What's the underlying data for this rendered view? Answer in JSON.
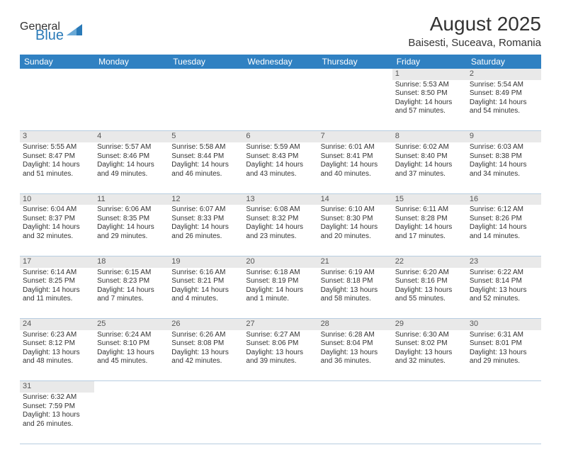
{
  "logo": {
    "word1": "General",
    "word2": "Blue"
  },
  "title": "August 2025",
  "location": "Baisesti, Suceava, Romania",
  "colors": {
    "header_bg": "#3081c2",
    "header_text": "#ffffff",
    "daynum_bg": "#e9e9e9",
    "cell_border": "#b7cde0",
    "text": "#333333",
    "logo_gray": "#58585a",
    "logo_blue": "#2a7ab8"
  },
  "day_headers": [
    "Sunday",
    "Monday",
    "Tuesday",
    "Wednesday",
    "Thursday",
    "Friday",
    "Saturday"
  ],
  "weeks": [
    [
      null,
      null,
      null,
      null,
      null,
      {
        "n": "1",
        "sr": "Sunrise: 5:53 AM",
        "ss": "Sunset: 8:50 PM",
        "d1": "Daylight: 14 hours",
        "d2": "and 57 minutes."
      },
      {
        "n": "2",
        "sr": "Sunrise: 5:54 AM",
        "ss": "Sunset: 8:49 PM",
        "d1": "Daylight: 14 hours",
        "d2": "and 54 minutes."
      }
    ],
    [
      {
        "n": "3",
        "sr": "Sunrise: 5:55 AM",
        "ss": "Sunset: 8:47 PM",
        "d1": "Daylight: 14 hours",
        "d2": "and 51 minutes."
      },
      {
        "n": "4",
        "sr": "Sunrise: 5:57 AM",
        "ss": "Sunset: 8:46 PM",
        "d1": "Daylight: 14 hours",
        "d2": "and 49 minutes."
      },
      {
        "n": "5",
        "sr": "Sunrise: 5:58 AM",
        "ss": "Sunset: 8:44 PM",
        "d1": "Daylight: 14 hours",
        "d2": "and 46 minutes."
      },
      {
        "n": "6",
        "sr": "Sunrise: 5:59 AM",
        "ss": "Sunset: 8:43 PM",
        "d1": "Daylight: 14 hours",
        "d2": "and 43 minutes."
      },
      {
        "n": "7",
        "sr": "Sunrise: 6:01 AM",
        "ss": "Sunset: 8:41 PM",
        "d1": "Daylight: 14 hours",
        "d2": "and 40 minutes."
      },
      {
        "n": "8",
        "sr": "Sunrise: 6:02 AM",
        "ss": "Sunset: 8:40 PM",
        "d1": "Daylight: 14 hours",
        "d2": "and 37 minutes."
      },
      {
        "n": "9",
        "sr": "Sunrise: 6:03 AM",
        "ss": "Sunset: 8:38 PM",
        "d1": "Daylight: 14 hours",
        "d2": "and 34 minutes."
      }
    ],
    [
      {
        "n": "10",
        "sr": "Sunrise: 6:04 AM",
        "ss": "Sunset: 8:37 PM",
        "d1": "Daylight: 14 hours",
        "d2": "and 32 minutes."
      },
      {
        "n": "11",
        "sr": "Sunrise: 6:06 AM",
        "ss": "Sunset: 8:35 PM",
        "d1": "Daylight: 14 hours",
        "d2": "and 29 minutes."
      },
      {
        "n": "12",
        "sr": "Sunrise: 6:07 AM",
        "ss": "Sunset: 8:33 PM",
        "d1": "Daylight: 14 hours",
        "d2": "and 26 minutes."
      },
      {
        "n": "13",
        "sr": "Sunrise: 6:08 AM",
        "ss": "Sunset: 8:32 PM",
        "d1": "Daylight: 14 hours",
        "d2": "and 23 minutes."
      },
      {
        "n": "14",
        "sr": "Sunrise: 6:10 AM",
        "ss": "Sunset: 8:30 PM",
        "d1": "Daylight: 14 hours",
        "d2": "and 20 minutes."
      },
      {
        "n": "15",
        "sr": "Sunrise: 6:11 AM",
        "ss": "Sunset: 8:28 PM",
        "d1": "Daylight: 14 hours",
        "d2": "and 17 minutes."
      },
      {
        "n": "16",
        "sr": "Sunrise: 6:12 AM",
        "ss": "Sunset: 8:26 PM",
        "d1": "Daylight: 14 hours",
        "d2": "and 14 minutes."
      }
    ],
    [
      {
        "n": "17",
        "sr": "Sunrise: 6:14 AM",
        "ss": "Sunset: 8:25 PM",
        "d1": "Daylight: 14 hours",
        "d2": "and 11 minutes."
      },
      {
        "n": "18",
        "sr": "Sunrise: 6:15 AM",
        "ss": "Sunset: 8:23 PM",
        "d1": "Daylight: 14 hours",
        "d2": "and 7 minutes."
      },
      {
        "n": "19",
        "sr": "Sunrise: 6:16 AM",
        "ss": "Sunset: 8:21 PM",
        "d1": "Daylight: 14 hours",
        "d2": "and 4 minutes."
      },
      {
        "n": "20",
        "sr": "Sunrise: 6:18 AM",
        "ss": "Sunset: 8:19 PM",
        "d1": "Daylight: 14 hours",
        "d2": "and 1 minute."
      },
      {
        "n": "21",
        "sr": "Sunrise: 6:19 AM",
        "ss": "Sunset: 8:18 PM",
        "d1": "Daylight: 13 hours",
        "d2": "and 58 minutes."
      },
      {
        "n": "22",
        "sr": "Sunrise: 6:20 AM",
        "ss": "Sunset: 8:16 PM",
        "d1": "Daylight: 13 hours",
        "d2": "and 55 minutes."
      },
      {
        "n": "23",
        "sr": "Sunrise: 6:22 AM",
        "ss": "Sunset: 8:14 PM",
        "d1": "Daylight: 13 hours",
        "d2": "and 52 minutes."
      }
    ],
    [
      {
        "n": "24",
        "sr": "Sunrise: 6:23 AM",
        "ss": "Sunset: 8:12 PM",
        "d1": "Daylight: 13 hours",
        "d2": "and 48 minutes."
      },
      {
        "n": "25",
        "sr": "Sunrise: 6:24 AM",
        "ss": "Sunset: 8:10 PM",
        "d1": "Daylight: 13 hours",
        "d2": "and 45 minutes."
      },
      {
        "n": "26",
        "sr": "Sunrise: 6:26 AM",
        "ss": "Sunset: 8:08 PM",
        "d1": "Daylight: 13 hours",
        "d2": "and 42 minutes."
      },
      {
        "n": "27",
        "sr": "Sunrise: 6:27 AM",
        "ss": "Sunset: 8:06 PM",
        "d1": "Daylight: 13 hours",
        "d2": "and 39 minutes."
      },
      {
        "n": "28",
        "sr": "Sunrise: 6:28 AM",
        "ss": "Sunset: 8:04 PM",
        "d1": "Daylight: 13 hours",
        "d2": "and 36 minutes."
      },
      {
        "n": "29",
        "sr": "Sunrise: 6:30 AM",
        "ss": "Sunset: 8:02 PM",
        "d1": "Daylight: 13 hours",
        "d2": "and 32 minutes."
      },
      {
        "n": "30",
        "sr": "Sunrise: 6:31 AM",
        "ss": "Sunset: 8:01 PM",
        "d1": "Daylight: 13 hours",
        "d2": "and 29 minutes."
      }
    ],
    [
      {
        "n": "31",
        "sr": "Sunrise: 6:32 AM",
        "ss": "Sunset: 7:59 PM",
        "d1": "Daylight: 13 hours",
        "d2": "and 26 minutes."
      },
      null,
      null,
      null,
      null,
      null,
      null
    ]
  ]
}
